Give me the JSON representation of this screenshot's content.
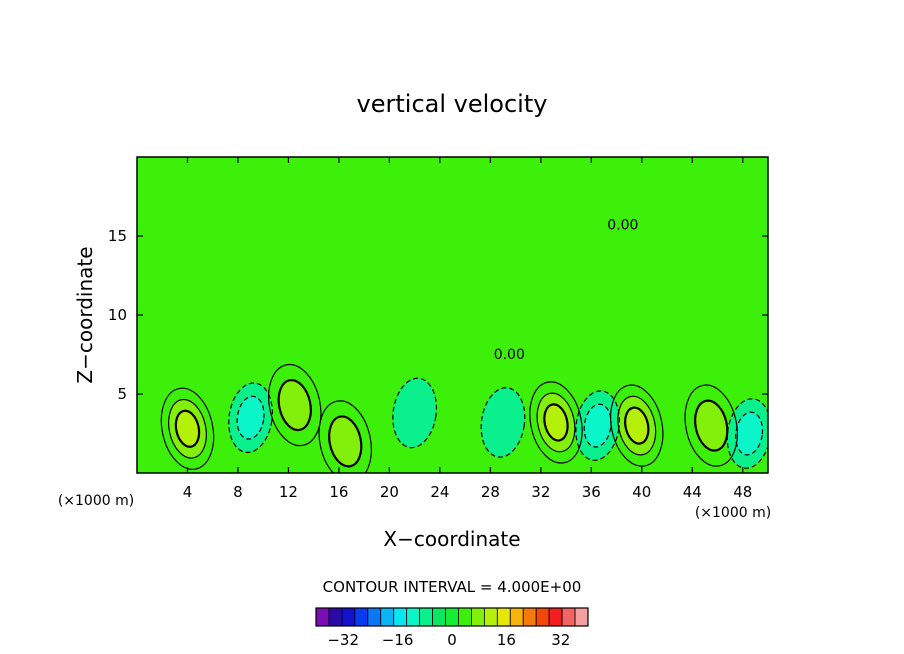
{
  "chart_data": {
    "type": "heatmap",
    "title": "vertical velocity",
    "xlabel": "X−coordinate",
    "ylabel": "Z−coordinate",
    "x_unit_left": "(×1000 m)",
    "x_unit_right": "(×1000 m)",
    "xlim": [
      0,
      50
    ],
    "ylim": [
      0,
      20
    ],
    "x_ticks": [
      4,
      8,
      12,
      16,
      20,
      24,
      28,
      32,
      36,
      40,
      44,
      48
    ],
    "y_ticks": [
      5,
      10,
      15
    ],
    "contour_interval_text": "CONTOUR INTERVAL = 4.000E+00",
    "contour_labels": [
      {
        "text": "0.00",
        "x": 38.5,
        "y": 15.4
      },
      {
        "text": "0.00",
        "x": 29.5,
        "y": 7.2
      }
    ],
    "colorbar": {
      "tick_labels": [
        "−32",
        "−16",
        "0",
        "16",
        "32"
      ],
      "tick_values": [
        -32,
        -16,
        0,
        16,
        32
      ],
      "levels": [
        -40,
        -36,
        -32,
        -28,
        -24,
        -20,
        -16,
        -12,
        -8,
        -4,
        0,
        4,
        8,
        12,
        16,
        20,
        24,
        28,
        32,
        36,
        40
      ],
      "colors": [
        "#7a0db3",
        "#2a0aa6",
        "#1212cc",
        "#0a3aee",
        "#0a78f5",
        "#0ab4f5",
        "#0ae6f0",
        "#0af5c8",
        "#0af08c",
        "#0ae660",
        "#14ee32",
        "#3cf00a",
        "#82f00a",
        "#b4f00a",
        "#e6e60a",
        "#f5b40a",
        "#f57a0a",
        "#f5460a",
        "#f51e1e",
        "#f56464",
        "#f5a0a0"
      ]
    },
    "features": [
      {
        "kind": "updraft",
        "x": 4.0,
        "z": 2.8,
        "peak": 12
      },
      {
        "kind": "updraft",
        "x": 12.5,
        "z": 4.3,
        "peak": 8
      },
      {
        "kind": "updraft",
        "x": 16.5,
        "z": 2.0,
        "peak": 8
      },
      {
        "kind": "updraft",
        "x": 33.2,
        "z": 3.2,
        "peak": 12
      },
      {
        "kind": "updraft",
        "x": 39.6,
        "z": 3.0,
        "peak": 12
      },
      {
        "kind": "updraft",
        "x": 45.5,
        "z": 3.0,
        "peak": 8
      },
      {
        "kind": "downdraft",
        "x": 9.0,
        "z": 3.5,
        "peak": -8
      },
      {
        "kind": "downdraft",
        "x": 36.5,
        "z": 3.0,
        "peak": -8
      },
      {
        "kind": "downdraft",
        "x": 48.5,
        "z": 2.5,
        "peak": -8
      },
      {
        "kind": "downdraft",
        "x": 22.0,
        "z": 3.8,
        "peak": -4
      },
      {
        "kind": "downdraft",
        "x": 29.0,
        "z": 3.2,
        "peak": -4
      }
    ]
  }
}
